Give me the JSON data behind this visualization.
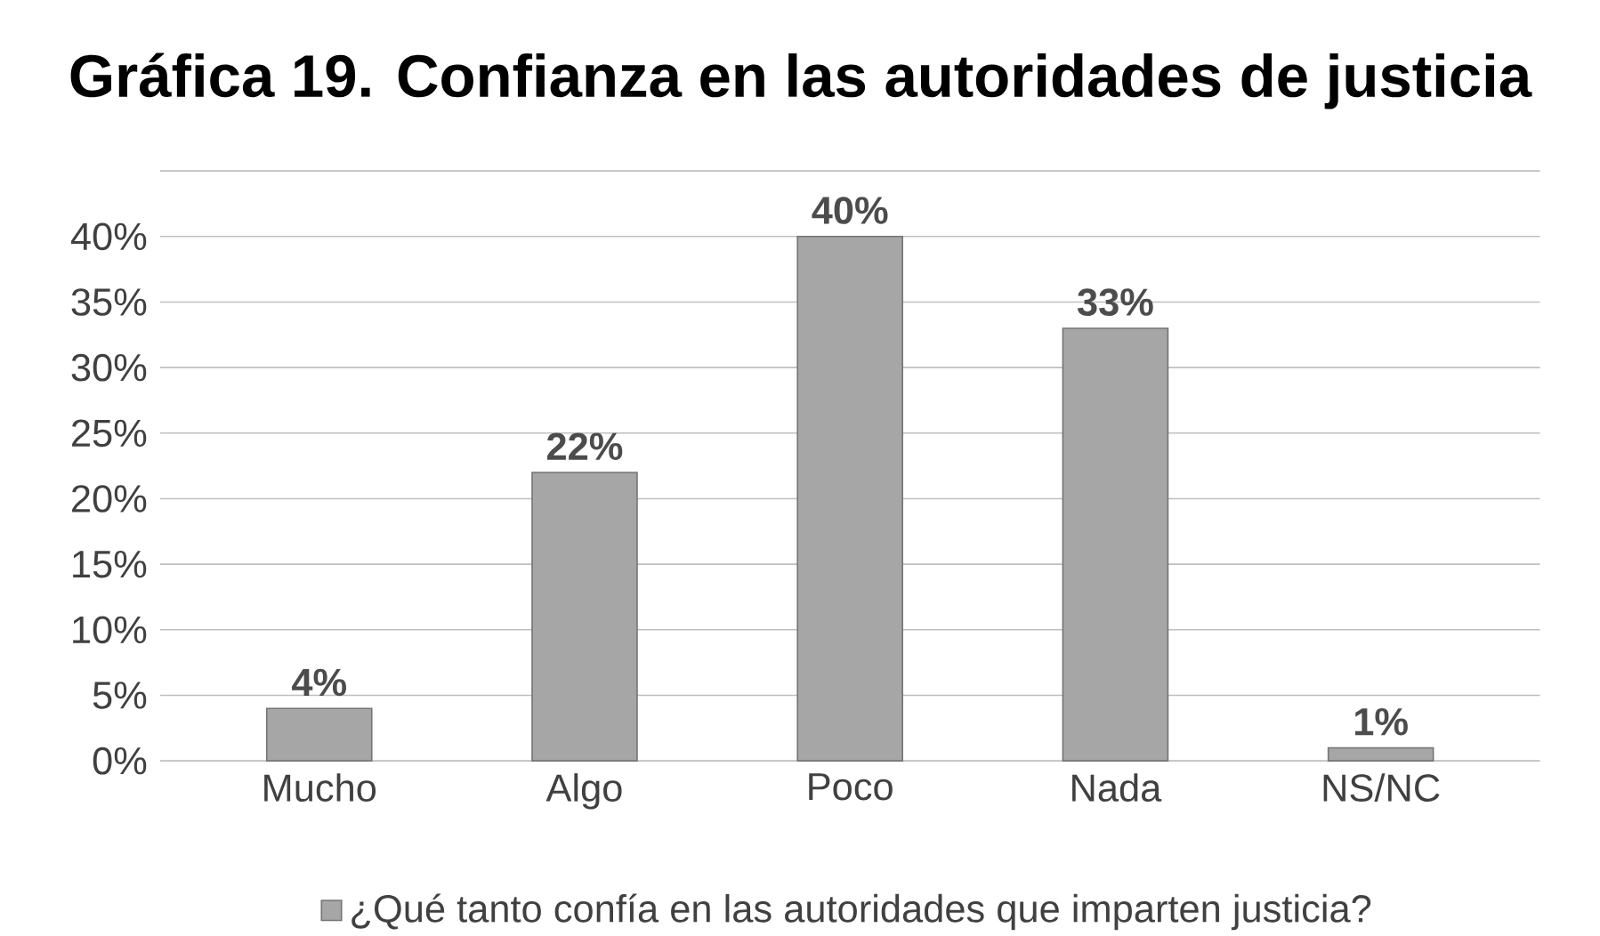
{
  "chart_data": {
    "type": "bar",
    "title": "Gráfica 19. Confianza en las autoridades de justicia",
    "categories": [
      "Mucho",
      "Algo",
      "Poco",
      "Nada",
      "NS/NC"
    ],
    "series": [
      {
        "name": "¿Qué tanto confía en las autoridades que imparten justicia?",
        "color": "#a6a6a6",
        "values": [
          4,
          22,
          40,
          33,
          1
        ],
        "value_labels": [
          "4%",
          "22%",
          "40%",
          "33%",
          "1%"
        ]
      }
    ],
    "ylim": [
      0,
      45
    ],
    "yticks": [
      {
        "value": 0,
        "label": "0%"
      },
      {
        "value": 5,
        "label": "5%"
      },
      {
        "value": 10,
        "label": "10%"
      },
      {
        "value": 15,
        "label": "15%"
      },
      {
        "value": 20,
        "label": "20%"
      },
      {
        "value": 25,
        "label": "25%"
      },
      {
        "value": 30,
        "label": "30%"
      },
      {
        "value": 35,
        "label": "35%"
      },
      {
        "value": 40,
        "label": "40%"
      },
      {
        "value": 45,
        "label": null
      }
    ],
    "grid": "y",
    "legend": "bottom"
  }
}
